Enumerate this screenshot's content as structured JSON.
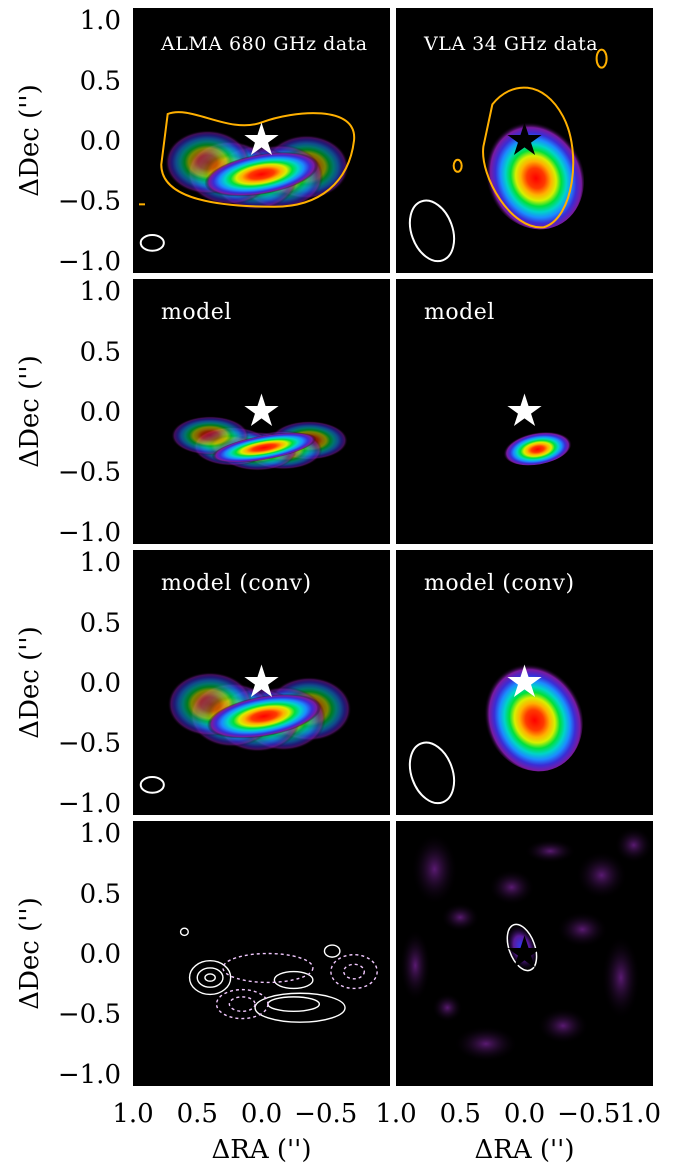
{
  "chart_data": {
    "type": "heatmap",
    "grid": {
      "rows": 4,
      "cols": 2
    },
    "xlabel": "ΔRA ('')",
    "ylabel": "ΔDec ('')",
    "xlim": [
      1.0,
      -1.0
    ],
    "ylim": [
      -1.1,
      1.1
    ],
    "y_tick_labels": [
      "1.0",
      "0.5",
      "0.0",
      "−0.5",
      "−1.0"
    ],
    "x_tick_labels": [
      "1.0",
      "0.5",
      "0.0",
      "−0.5",
      "−1"
    ],
    "colormap": [
      "#000000",
      "#3a0a4a",
      "#7a1aa0",
      "#3b2cd6",
      "#1a8cff",
      "#00d4c8",
      "#00e03a",
      "#d8f000",
      "#ffb000",
      "#ff3a00",
      "#ff0000"
    ],
    "panels": [
      {
        "row": 0,
        "col": 0,
        "label": "ALMA 680 GHz data",
        "star": "white",
        "emission": {
          "cx": 0.0,
          "cy": -0.28,
          "shape": "arc",
          "peak": 1.0
        },
        "outer_contour_color": "#ffb000",
        "beam": {
          "x": 0.85,
          "y": -0.85,
          "rx": 0.09,
          "ry": 0.065,
          "angle": 0
        }
      },
      {
        "row": 0,
        "col": 1,
        "label": "VLA 34 GHz data",
        "star": "black",
        "emission": {
          "cx": -0.07,
          "cy": -0.27,
          "shape": "ellipse",
          "peak": 1.0
        },
        "outer_contour_color": "#ffb000",
        "beam": {
          "x": 0.72,
          "y": -0.75,
          "rx": 0.16,
          "ry": 0.26,
          "angle": -20
        }
      },
      {
        "row": 1,
        "col": 0,
        "label": "model",
        "star": "white",
        "emission": {
          "cx": -0.02,
          "cy": -0.3,
          "shape": "arc-thin",
          "peak": 1.0
        }
      },
      {
        "row": 1,
        "col": 1,
        "label": "model",
        "star": "white",
        "emission": {
          "cx": -0.1,
          "cy": -0.3,
          "shape": "small",
          "peak": 1.0
        }
      },
      {
        "row": 2,
        "col": 0,
        "label": "model (conv)",
        "star": "white",
        "emission": {
          "cx": -0.02,
          "cy": -0.28,
          "shape": "arc",
          "peak": 1.0
        },
        "beam": {
          "x": 0.85,
          "y": -0.85,
          "rx": 0.09,
          "ry": 0.065,
          "angle": 0
        }
      },
      {
        "row": 2,
        "col": 1,
        "label": "model (conv)",
        "star": "white",
        "emission": {
          "cx": -0.06,
          "cy": -0.27,
          "shape": "ellipse",
          "peak": 1.0
        },
        "beam": {
          "x": 0.72,
          "y": -0.75,
          "rx": 0.16,
          "ry": 0.26,
          "angle": -20
        }
      },
      {
        "row": 3,
        "col": 0,
        "label": "",
        "star": "none",
        "residual": true
      },
      {
        "row": 3,
        "col": 1,
        "label": "",
        "star": "black",
        "residual": true
      }
    ]
  }
}
